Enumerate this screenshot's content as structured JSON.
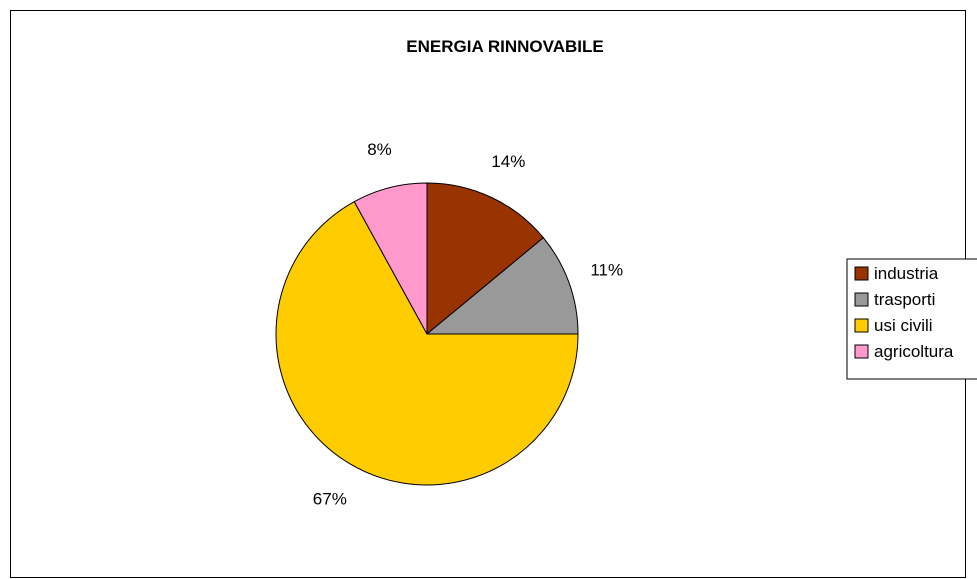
{
  "chart_data": {
    "type": "pie",
    "title": "ENERGIA RINNOVABILE",
    "categories": [
      "industria",
      "trasporti",
      "usi civili",
      "agricoltura"
    ],
    "values": [
      14,
      11,
      67,
      8
    ],
    "value_labels": [
      "14%",
      "11%",
      "67%",
      "8%"
    ],
    "colors": [
      "#993300",
      "#999999",
      "#FFCC00",
      "#FF99CC"
    ],
    "legend": {
      "placement": "right"
    }
  }
}
